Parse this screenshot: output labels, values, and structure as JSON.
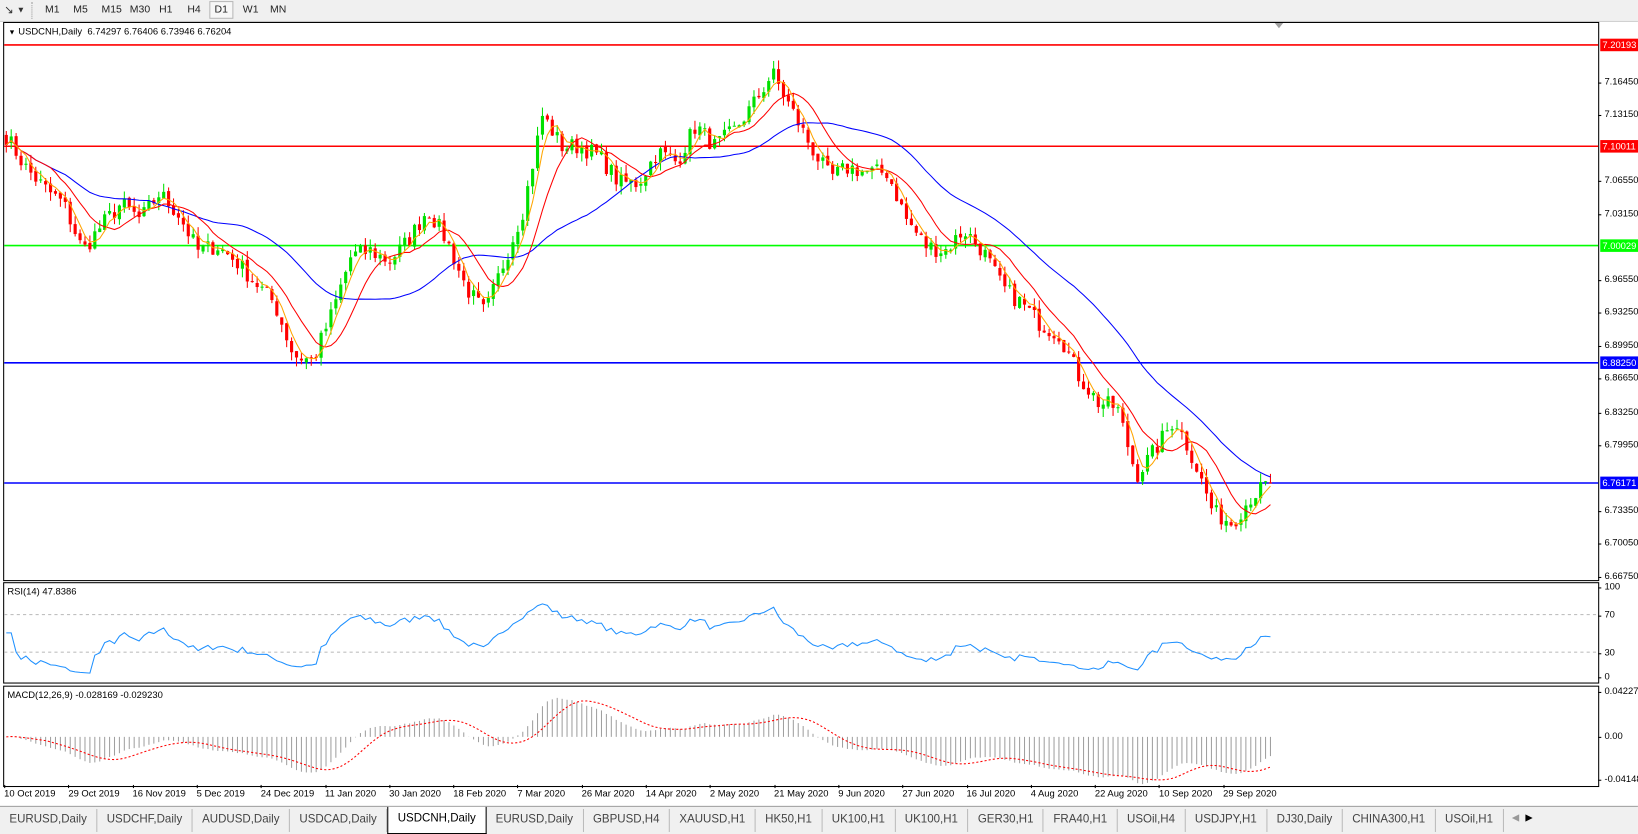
{
  "toolbar": {
    "timeframes": [
      "M1",
      "M5",
      "M15",
      "M30",
      "H1",
      "H4",
      "D1",
      "W1",
      "MN"
    ],
    "active_timeframe": "D1",
    "icons": [
      "line-studies-icon",
      "dropdown-arrow-icon"
    ]
  },
  "chart": {
    "symbol_title": "USDCNH,Daily",
    "ohlc": "6.74297 6.76406 6.73946 6.76204",
    "price_ticks": [
      "7.16450",
      "7.13150",
      "7.06550",
      "7.03150",
      "6.96550",
      "6.93250",
      "6.89950",
      "6.86650",
      "6.83250",
      "6.79950",
      "6.73350",
      "6.70050",
      "6.66750"
    ],
    "levels": [
      {
        "value": "7.20193",
        "color": "#ff0000"
      },
      {
        "value": "7.10011",
        "color": "#ff0000"
      },
      {
        "value": "7.00029",
        "color": "#00ff00"
      },
      {
        "value": "6.88250",
        "color": "#0000ff"
      },
      {
        "value": "6.76171",
        "color": "#0000ff"
      }
    ],
    "colors": {
      "bull": "#00e000",
      "bear": "#ff0000",
      "ma_fast": "#ff0000",
      "ma_slow": "#0000ff",
      "ma_short": "#ffa500"
    },
    "date_labels": [
      "10 Oct 2019",
      "29 Oct 2019",
      "16 Nov 2019",
      "5 Dec 2019",
      "24 Dec 2019",
      "11 Jan 2020",
      "30 Jan 2020",
      "18 Feb 2020",
      "7 Mar 2020",
      "26 Mar 2020",
      "14 Apr 2020",
      "2 May 2020",
      "21 May 2020",
      "9 Jun 2020",
      "27 Jun 2020",
      "16 Jul 2020",
      "4 Aug 2020",
      "22 Aug 2020",
      "10 Sep 2020",
      "29 Sep 2020"
    ],
    "approx_closes": [
      7.1105,
      7.079,
      7.058,
      7.0423,
      6.995,
      7.0212,
      7.0423,
      7.0265,
      7.0528,
      7.0318,
      6.995,
      7.0002,
      6.9845,
      6.9635,
      6.9425,
      6.89,
      6.8847,
      6.932,
      6.9897,
      6.995,
      6.9845,
      7.0055,
      7.037,
      7.0055,
      6.9582,
      6.932,
      6.9845,
      7.037,
      7.1315,
      7.1,
      7.1,
      7.0895,
      7.0633,
      7.0633,
      7.0948,
      7.0843,
      7.121,
      7.1,
      7.1158,
      7.142,
      7.1735,
      7.1368,
      7.1,
      7.0685,
      7.079,
      7.0738,
      7.0738,
      7.0265,
      7.0002,
      6.995,
      7.016,
      6.995,
      6.9582,
      6.9425,
      6.9215,
      6.911,
      6.8689,
      6.8427,
      6.8374,
      6.7691,
      6.7954,
      6.8269,
      6.7849,
      6.7323,
      6.7218,
      6.7481,
      6.762
    ]
  },
  "rsi": {
    "label": "RSI(14) 47.8386",
    "ticks": [
      "100",
      "70",
      "30",
      "0"
    ],
    "color": "#1e90ff"
  },
  "macd": {
    "label": "MACD(12,26,9) -0.028169 -0.029230",
    "ticks": [
      "0.042275",
      "0.00",
      "-0.04148"
    ],
    "signal_color": "#ff0000",
    "hist_color": "#a0a0a0"
  },
  "tabs": [
    {
      "label": "EURUSD,Daily"
    },
    {
      "label": "USDCHF,Daily"
    },
    {
      "label": "AUDUSD,Daily"
    },
    {
      "label": "USDCAD,Daily"
    },
    {
      "label": "USDCNH,Daily",
      "active": true
    },
    {
      "label": "EURUSD,Daily"
    },
    {
      "label": "GBPUSD,H4"
    },
    {
      "label": "XAUUSD,H1"
    },
    {
      "label": "HK50,H1"
    },
    {
      "label": "UK100,H1"
    },
    {
      "label": "UK100,H1"
    },
    {
      "label": "GER30,H1"
    },
    {
      "label": "FRA40,H1"
    },
    {
      "label": "USOil,H4"
    },
    {
      "label": "USDJPY,H1"
    },
    {
      "label": "DJ30,Daily"
    },
    {
      "label": "CHINA300,H1"
    },
    {
      "label": "USOil,H1"
    }
  ]
}
